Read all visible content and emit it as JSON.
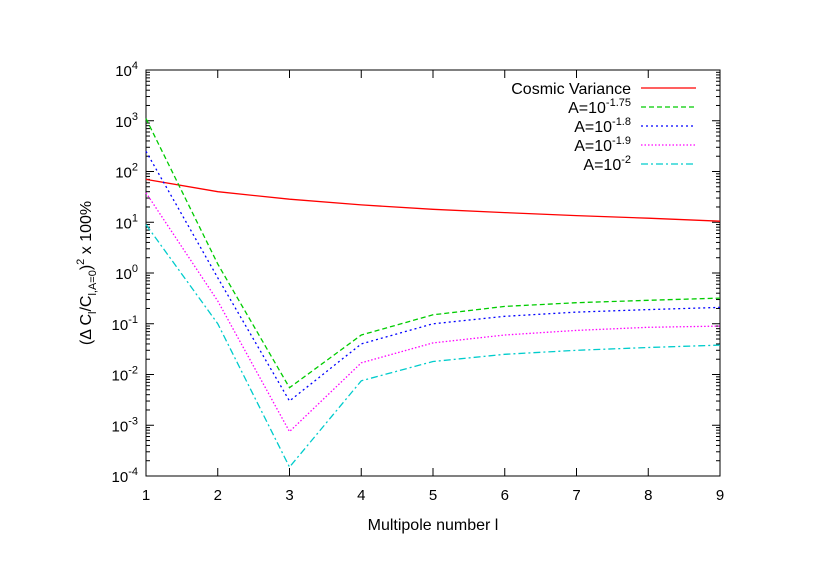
{
  "chart_data": {
    "type": "line",
    "xlabel": "Multipole number l",
    "ylabel": {
      "parts": [
        {
          "t": "(Δ C",
          "s": ""
        },
        {
          "t": "l",
          "s": "sub"
        },
        {
          "t": "/C",
          "s": ""
        },
        {
          "t": "l,A=0",
          "s": "sub"
        },
        {
          "t": ")",
          "s": ""
        },
        {
          "t": "2",
          "s": "sup"
        },
        {
          "t": " x 100%",
          "s": ""
        }
      ]
    },
    "xlim": [
      1,
      9
    ],
    "ylim": [
      0.0001,
      10000
    ],
    "yscale": "log",
    "xticks": [
      1,
      2,
      3,
      4,
      5,
      6,
      7,
      8,
      9
    ],
    "yticks": [
      {
        "base": "10",
        "exp": "-4",
        "value": 0.0001
      },
      {
        "base": "10",
        "exp": "-3",
        "value": 0.001
      },
      {
        "base": "10",
        "exp": "-2",
        "value": 0.01
      },
      {
        "base": "10",
        "exp": "-1",
        "value": 0.1
      },
      {
        "base": "10",
        "exp": "0",
        "value": 1
      },
      {
        "base": "10",
        "exp": "1",
        "value": 10
      },
      {
        "base": "10",
        "exp": "2",
        "value": 100
      },
      {
        "base": "10",
        "exp": "3",
        "value": 1000
      },
      {
        "base": "10",
        "exp": "4",
        "value": 10000
      }
    ],
    "legend_position": "top-right",
    "grid": false,
    "x": [
      1,
      2,
      3,
      4,
      5,
      6,
      7,
      8,
      9
    ],
    "series": [
      {
        "name": "Cosmic Variance",
        "label_base": "Cosmic Variance",
        "label_exp": "",
        "color": "#ff0000",
        "dash": "solid",
        "values": [
          70,
          40,
          28.5,
          22,
          18,
          15.5,
          13.5,
          12,
          10.5
        ]
      },
      {
        "name": "A=10^-1.75",
        "label_base": "A=10",
        "label_exp": "-1.75",
        "color": "#00cc00",
        "dash": "dashed",
        "values": [
          1100,
          1.5,
          0.0055,
          0.06,
          0.15,
          0.22,
          0.26,
          0.29,
          0.32
        ]
      },
      {
        "name": "A=10^-1.8",
        "label_base": "A=10",
        "label_exp": "-1.8",
        "color": "#0000ff",
        "dash": "dotted",
        "values": [
          250,
          0.8,
          0.003,
          0.04,
          0.1,
          0.14,
          0.17,
          0.19,
          0.21
        ]
      },
      {
        "name": "A=10^-1.9",
        "label_base": "A=10",
        "label_exp": "-1.9",
        "color": "#ff00ff",
        "dash": "dotted-fine",
        "values": [
          38,
          0.28,
          0.00075,
          0.017,
          0.042,
          0.06,
          0.074,
          0.085,
          0.09
        ]
      },
      {
        "name": "A=10^-2",
        "label_base": "A=10",
        "label_exp": "-2",
        "color": "#00cccc",
        "dash": "dashdot",
        "values": [
          9,
          0.1,
          0.00015,
          0.0075,
          0.018,
          0.025,
          0.03,
          0.034,
          0.038
        ]
      }
    ]
  }
}
